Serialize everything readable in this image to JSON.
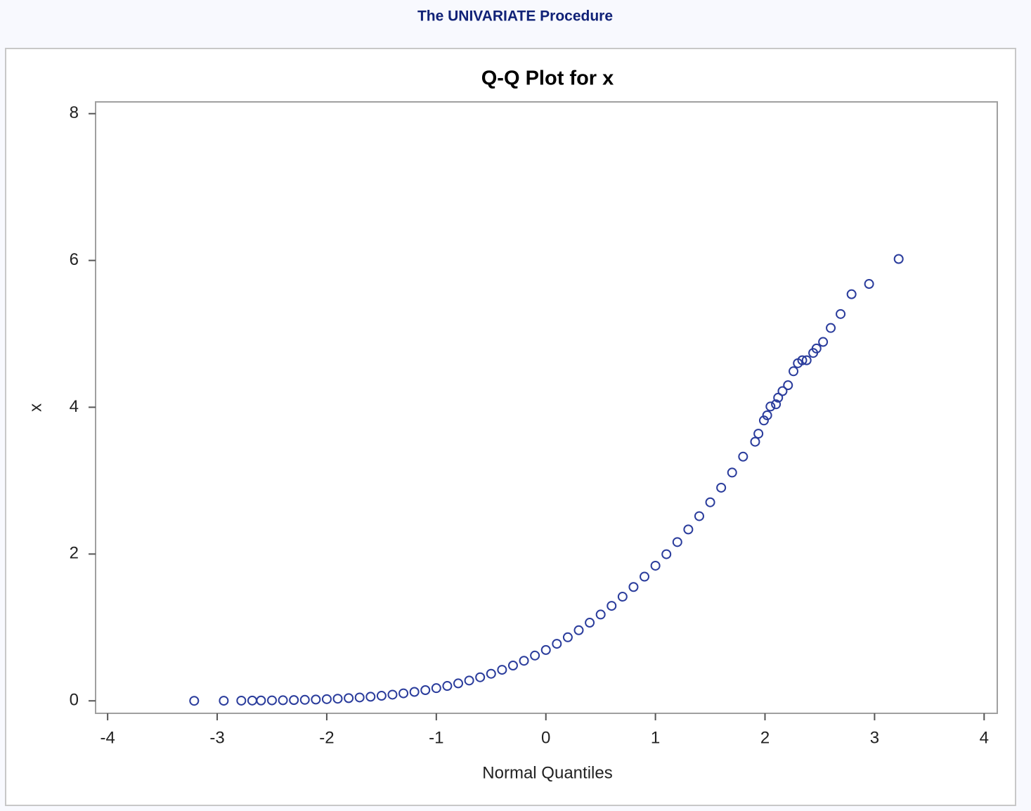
{
  "page_title": "The UNIVARIATE Procedure",
  "chart_data": {
    "type": "scatter",
    "title": "Q-Q Plot for x",
    "x_label": "Normal Quantiles",
    "y_label": "x",
    "color": "#2a3c9c",
    "x": [
      -3.21,
      -2.94,
      -2.78,
      -2.68,
      -2.6,
      -2.5,
      -2.4,
      -2.3,
      -2.2,
      -2.1,
      -2.0,
      -1.9,
      -1.8,
      -1.7,
      -1.6,
      -1.5,
      -1.4,
      -1.3,
      -1.2,
      -1.1,
      -1.0,
      -0.9,
      -0.8,
      -0.7,
      -0.6,
      -0.5,
      -0.4,
      -0.3,
      -0.2,
      -0.1,
      0,
      0.1,
      0.2,
      0.3,
      0.4,
      0.5,
      0.6,
      0.7,
      0.8,
      0.9,
      1.0,
      1.1,
      1.2,
      1.3,
      1.4,
      1.5,
      1.6,
      1.7,
      1.8,
      1.91,
      1.94,
      1.99,
      2.02,
      2.05,
      2.1,
      2.12,
      2.16,
      2.21,
      2.26,
      2.3,
      2.34,
      2.38,
      2.44,
      2.47,
      2.53,
      2.6,
      2.69,
      2.79,
      2.95,
      3.22
    ],
    "values": [
      0.0003,
      0.0016,
      0.0027,
      0.0037,
      0.0047,
      0.0062,
      0.0082,
      0.0108,
      0.014,
      0.018,
      0.023,
      0.029,
      0.037,
      0.046,
      0.056,
      0.069,
      0.084,
      0.102,
      0.122,
      0.146,
      0.173,
      0.203,
      0.238,
      0.277,
      0.321,
      0.369,
      0.423,
      0.481,
      0.546,
      0.617,
      0.693,
      0.777,
      0.866,
      0.962,
      1.065,
      1.176,
      1.294,
      1.419,
      1.551,
      1.692,
      1.841,
      1.998,
      2.163,
      2.335,
      2.516,
      2.705,
      2.904,
      3.11,
      3.327,
      3.53,
      3.64,
      3.82,
      3.89,
      4.01,
      4.04,
      4.13,
      4.22,
      4.3,
      4.49,
      4.6,
      4.64,
      4.64,
      4.74,
      4.8,
      4.89,
      5.08,
      5.27,
      5.54,
      5.68,
      6.02
    ],
    "xlim": [
      -4.11,
      4.12
    ],
    "ylim": [
      -0.17,
      8.16
    ],
    "xticks": [
      -4,
      -3,
      -2,
      -1,
      0,
      1,
      2,
      3,
      4
    ],
    "yticks": [
      0,
      2,
      4,
      6,
      8
    ]
  }
}
